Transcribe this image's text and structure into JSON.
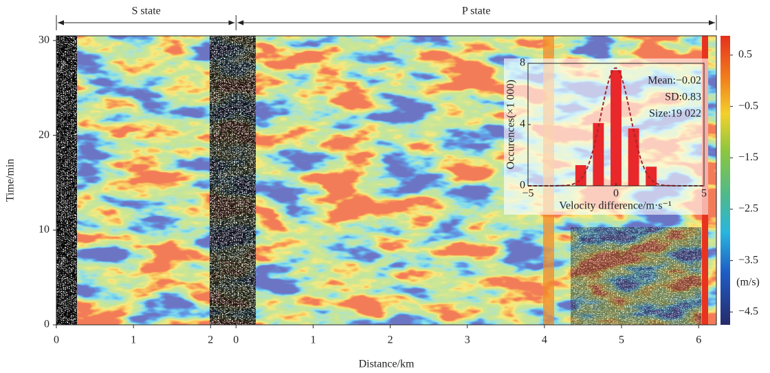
{
  "chart_data": [
    {
      "type": "heatmap",
      "xlabel": "Distance/km",
      "ylabel": "Time/min",
      "segments": [
        {
          "label": "S state",
          "xlim": [
            0,
            2.33
          ],
          "xticks": [
            0,
            1,
            2
          ]
        },
        {
          "label": "P state",
          "xlim": [
            0,
            6.23
          ],
          "xticks": [
            0,
            1,
            2,
            3,
            4,
            5,
            6
          ]
        }
      ],
      "ylim": [
        0,
        30.5
      ],
      "yticks": [
        0,
        10,
        20,
        30
      ],
      "colorbar": {
        "label": "(m/s)",
        "lim": [
          -4.75,
          0.875
        ],
        "ticks": [
          0.5,
          {
            "value": -0.5,
            "label": "−0.5"
          },
          {
            "value": -1.5,
            "label": "−1.5"
          },
          {
            "value": -2.5,
            "label": "−2.5"
          },
          {
            "value": -3.5,
            "label": "−3.5"
          },
          {
            "value": -4.5,
            "label": "−4.5"
          }
        ]
      }
    },
    {
      "type": "bar",
      "xlabel": "Velocity difference/m·s⁻¹",
      "ylabel": "Occurences(×1 000)",
      "x": [
        -3,
        -2,
        -1,
        0,
        1,
        2,
        3
      ],
      "values": [
        0.05,
        1.35,
        4.1,
        7.55,
        3.75,
        1.25,
        0.05
      ],
      "color": "#e8282b",
      "xlim": [
        -5,
        5
      ],
      "xticks": [
        {
          "value": -5,
          "label": "−5"
        },
        0,
        5
      ],
      "ylim": [
        0,
        8
      ],
      "yticks": [
        0,
        4,
        8
      ],
      "fit": {
        "mean": {
          "value": -0.02,
          "label": "Mean:−0.02"
        },
        "sd": {
          "value": 0.83,
          "label": "SD:0.83"
        },
        "peak": 7.7,
        "color": "#a3262a"
      },
      "size": {
        "value": 19022,
        "label": "Size:19 022"
      }
    }
  ]
}
